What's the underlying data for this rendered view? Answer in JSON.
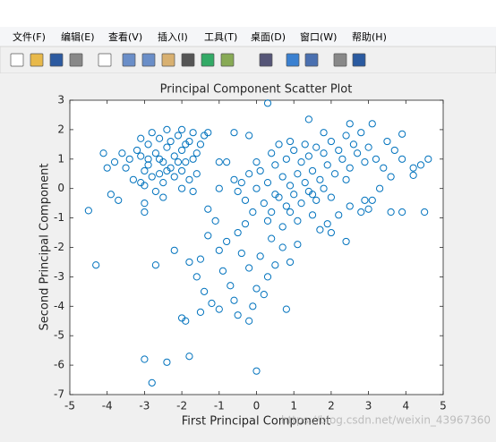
{
  "menu": [
    "文件(F)",
    "编辑(E)",
    "查看(V)",
    "插入(I)",
    "工具(T)",
    "桌面(D)",
    "窗口(W)",
    "帮助(H)"
  ],
  "watermark": "https://blog.csdn.net/weixin_43967360",
  "chart_data": {
    "type": "scatter",
    "title": "Principal Component Scatter Plot",
    "x_label": "First Principal Component",
    "y_label": "Second Principal Component",
    "color": "#0072bd",
    "marker": "open-circle",
    "xlim": [
      -5,
      5
    ],
    "xticks": [
      -5,
      -4,
      -3,
      -2,
      -1,
      0,
      1,
      2,
      3,
      4,
      5
    ],
    "ylim": [
      -7,
      3
    ],
    "yticks": [
      -7,
      -6,
      -5,
      -4,
      -3,
      -2,
      -1,
      0,
      1,
      2,
      3
    ],
    "x": [
      -3.1,
      -2.9,
      -2.7,
      -2.5,
      -2.3,
      -2.6,
      -2.8,
      -3.0,
      -2.4,
      -2.2,
      -2.0,
      -1.9,
      -1.7,
      -1.6,
      -1.8,
      -2.1,
      -2.4,
      -2.6,
      -2.9,
      -3.2,
      -3.4,
      -3.5,
      -3.3,
      -3.0,
      -2.7,
      -2.5,
      -2.2,
      -2.0,
      -1.8,
      -1.6,
      -1.5,
      -1.7,
      -2.0,
      -2.3,
      -2.8,
      -3.1,
      -3.6,
      -3.8,
      -2.6,
      -2.4,
      -2.9,
      -2.1,
      -3.1,
      -2.0,
      -1.9,
      -1.4,
      -1.3,
      -4.0,
      -4.1,
      -3.7,
      -3.9,
      -3.0,
      -2.5,
      -3.0,
      0.0,
      0.3,
      0.5,
      0.7,
      0.9,
      1.1,
      1.3,
      1.5,
      1.7,
      1.9,
      2.1,
      2.3,
      2.5,
      2.7,
      2.9,
      0.2,
      0.4,
      0.6,
      0.8,
      1.0,
      1.2,
      1.4,
      1.6,
      1.8,
      2.0,
      0.1,
      0.5,
      0.8,
      1.0,
      1.2,
      1.4,
      1.6,
      1.8,
      2.0,
      2.2,
      2.4,
      2.6,
      2.8,
      3.0,
      3.2,
      3.4,
      3.6,
      3.3,
      3.1,
      2.8,
      2.5,
      2.2,
      1.9,
      1.5,
      1.1,
      0.7,
      0.3,
      -0.1,
      -0.3,
      -0.4,
      -0.2,
      0.0,
      0.4,
      0.9,
      1.3,
      -0.5,
      -0.6,
      -0.8,
      -1.0,
      3.7,
      3.9,
      4.2,
      4.4,
      3.5,
      3.1,
      2.5,
      1.8,
      2.9,
      2.4,
      1.5,
      0.9,
      -0.3,
      -0.5,
      -0.8,
      -1.0,
      -1.3,
      -1.5,
      -1.8,
      -1.6,
      -1.4,
      -1.2,
      -1.0,
      -1.5,
      -1.9,
      -2.0,
      -0.7,
      -0.6,
      -0.9,
      -0.2,
      0.1,
      0.3,
      0.5,
      0.7,
      0.9,
      1.1,
      0.2,
      -0.1,
      0.0,
      0.4,
      -0.4,
      -2.2,
      -2.7,
      -1.1,
      -1.3,
      -1.7,
      0.8,
      -0.5,
      -0.2,
      2.4,
      2.0,
      1.7,
      -3.0,
      -2.8,
      -2.4,
      -1.8,
      0.0,
      -4.3,
      -4.5,
      0.3,
      1.4,
      4.6,
      4.5,
      3.9,
      4.2,
      3.9,
      3.6,
      3.0,
      -0.6,
      -0.2,
      0.6,
      -1.0
    ],
    "values": [
      1.1,
      0.8,
      1.2,
      0.9,
      0.7,
      0.5,
      0.4,
      0.6,
      1.4,
      1.1,
      1.3,
      0.9,
      1.0,
      1.2,
      1.6,
      1.8,
      2.0,
      1.7,
      1.5,
      1.3,
      1.0,
      0.7,
      0.3,
      0.1,
      -0.1,
      0.2,
      0.4,
      0.6,
      0.3,
      0.5,
      1.5,
      1.9,
      2.0,
      1.6,
      1.9,
      1.7,
      1.2,
      0.9,
      1.0,
      0.6,
      1.0,
      0.9,
      0.2,
      0.0,
      1.5,
      1.8,
      1.9,
      0.7,
      1.2,
      -0.4,
      -0.2,
      -0.5,
      -0.3,
      -0.8,
      0.0,
      0.2,
      -0.2,
      0.4,
      0.1,
      0.5,
      0.2,
      0.6,
      0.3,
      0.8,
      0.5,
      1.0,
      0.7,
      1.2,
      0.9,
      -0.5,
      -0.8,
      -0.3,
      -0.6,
      -0.2,
      -0.5,
      -0.1,
      -0.4,
      0.0,
      -0.3,
      0.6,
      0.8,
      1.0,
      1.3,
      0.9,
      1.1,
      1.4,
      1.2,
      1.6,
      1.3,
      1.8,
      1.5,
      1.9,
      1.4,
      1.0,
      0.7,
      0.4,
      0.0,
      -0.4,
      -0.8,
      -0.6,
      -0.9,
      -1.2,
      -0.9,
      -1.1,
      -1.3,
      -1.1,
      -0.8,
      -0.4,
      0.2,
      0.5,
      0.9,
      1.2,
      1.6,
      1.5,
      -0.1,
      0.3,
      0.9,
      0.9,
      1.3,
      1.0,
      0.7,
      0.8,
      1.6,
      2.2,
      2.2,
      1.9,
      -0.4,
      0.3,
      -0.2,
      -0.8,
      -1.2,
      -1.5,
      -1.8,
      -2.1,
      -1.6,
      -2.4,
      -2.5,
      -3.0,
      -3.5,
      -3.9,
      -4.1,
      -4.2,
      -4.5,
      -4.4,
      -3.3,
      -3.8,
      -2.8,
      -2.7,
      -2.3,
      -3.0,
      -2.6,
      -2.0,
      -2.5,
      -1.9,
      -3.6,
      -4.0,
      -3.4,
      -1.7,
      -2.2,
      -2.1,
      -2.6,
      -1.1,
      -0.7,
      -0.1,
      -4.1,
      -4.3,
      -4.5,
      -1.8,
      -1.5,
      -1.4,
      -5.8,
      -6.6,
      -5.9,
      -5.7,
      -6.2,
      -2.6,
      -0.75,
      2.9,
      2.35,
      1.0,
      -0.8,
      -0.8,
      0.45,
      1.85,
      -0.8,
      -0.7,
      1.9,
      1.8,
      1.5,
      0.0
    ]
  }
}
